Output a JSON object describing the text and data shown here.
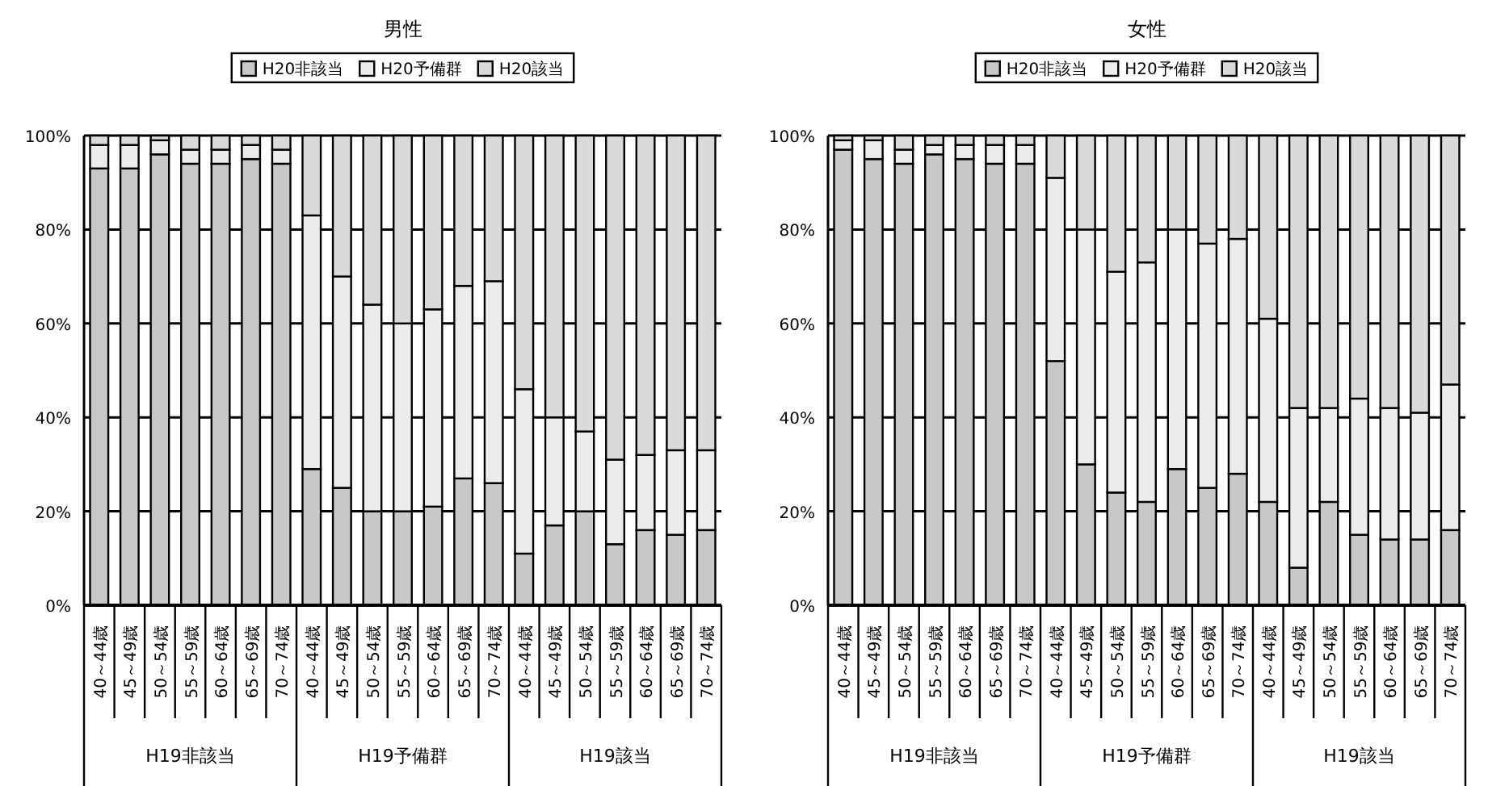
{
  "chart_data": [
    {
      "type": "bar",
      "title": "男性",
      "stacked": true,
      "legend": "top",
      "grid": "y",
      "categories": [
        "40～44歳",
        "45～49歳",
        "50～54歳",
        "55～59歳",
        "60～64歳",
        "65～69歳",
        "70～74歳",
        "40～44歳",
        "45～49歳",
        "50～54歳",
        "55～59歳",
        "60～64歳",
        "65～69歳",
        "70～74歳",
        "40～44歳",
        "45～49歳",
        "50～54歳",
        "55～59歳",
        "60～64歳",
        "65～69歳",
        "70～74歳"
      ],
      "series": [
        {
          "name": "H20非該当",
          "color": "#c8c8c8",
          "values": [
            93,
            93,
            96,
            94,
            94,
            95,
            94,
            29,
            25,
            20,
            20,
            21,
            27,
            26,
            11,
            17,
            20,
            13,
            16,
            15,
            16
          ]
        },
        {
          "name": "H20予備群",
          "color": "#ececec",
          "values": [
            5,
            5,
            3,
            3,
            3,
            3,
            3,
            54,
            45,
            44,
            40,
            42,
            41,
            43,
            35,
            23,
            17,
            18,
            16,
            18,
            17
          ]
        },
        {
          "name": "H20該当",
          "color": "#dadada",
          "values": [
            2,
            2,
            1,
            3,
            3,
            2,
            3,
            17,
            30,
            36,
            40,
            37,
            32,
            31,
            54,
            60,
            63,
            69,
            68,
            67,
            67
          ]
        }
      ],
      "ylim": [
        0,
        100
      ],
      "yticks": [
        {
          "value": 0,
          "label": "0%"
        },
        {
          "value": 20,
          "label": "20%"
        },
        {
          "value": 40,
          "label": "40%"
        },
        {
          "value": 60,
          "label": "60%"
        },
        {
          "value": 80,
          "label": "80%"
        },
        {
          "value": 100,
          "label": "100%"
        }
      ],
      "annotations": [
        "H19非該当",
        "H19予備群",
        "H19該当"
      ]
    },
    {
      "type": "bar",
      "title": "女性",
      "stacked": true,
      "legend": "top",
      "grid": "y",
      "categories": [
        "40～44歳",
        "45～49歳",
        "50～54歳",
        "55～59歳",
        "60～64歳",
        "65～69歳",
        "70～74歳",
        "40～44歳",
        "45～49歳",
        "50～54歳",
        "55～59歳",
        "60～64歳",
        "65～69歳",
        "70～74歳",
        "40～44歳",
        "45～49歳",
        "50～54歳",
        "55～59歳",
        "60～64歳",
        "65～69歳",
        "70～74歳"
      ],
      "series": [
        {
          "name": "H20非該当",
          "color": "#c8c8c8",
          "values": [
            97,
            95,
            94,
            96,
            95,
            94,
            94,
            52,
            30,
            24,
            22,
            29,
            25,
            28,
            22,
            8,
            22,
            15,
            14,
            14,
            16
          ]
        },
        {
          "name": "H20予備群",
          "color": "#ececec",
          "values": [
            2,
            4,
            3,
            2,
            3,
            4,
            4,
            39,
            50,
            47,
            51,
            51,
            52,
            50,
            39,
            34,
            20,
            29,
            28,
            27,
            31
          ]
        },
        {
          "name": "H20該当",
          "color": "#dadada",
          "values": [
            1,
            1,
            3,
            2,
            2,
            2,
            2,
            9,
            20,
            29,
            27,
            20,
            23,
            22,
            39,
            58,
            58,
            56,
            58,
            59,
            53
          ]
        }
      ],
      "ylim": [
        0,
        100
      ],
      "yticks": [
        {
          "value": 0,
          "label": "0%"
        },
        {
          "value": 20,
          "label": "20%"
        },
        {
          "value": 40,
          "label": "40%"
        },
        {
          "value": 60,
          "label": "60%"
        },
        {
          "value": 80,
          "label": "80%"
        },
        {
          "value": 100,
          "label": "100%"
        }
      ],
      "annotations": [
        "H19非該当",
        "H19予備群",
        "H19該当"
      ]
    }
  ]
}
